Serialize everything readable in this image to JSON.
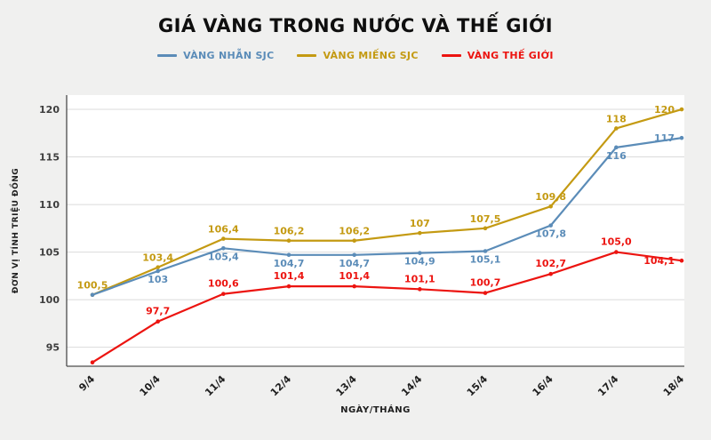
{
  "title": "GIÁ VÀNG TRONG NƯỚC VÀ THẾ GIỚI",
  "chart_data": {
    "type": "line",
    "x": [
      "9/4",
      "10/4",
      "11/4",
      "12/4",
      "13/4",
      "14/4",
      "15/4",
      "16/4",
      "17/4",
      "18/4"
    ],
    "xlabel": "NGÀY/THÁNG",
    "ylabel": "ĐƠN VỊ TÍNH TRIỆU ĐỒNG",
    "ylim": [
      93,
      121.5
    ],
    "yticks": [
      95,
      100,
      105,
      110,
      115,
      120
    ],
    "grid": true,
    "legend_position": "top",
    "series": [
      {
        "name": "VÀNG NHẪN SJC",
        "color": "#5b8cb8",
        "values": [
          100.5,
          103,
          105.4,
          104.7,
          104.7,
          104.9,
          105.1,
          107.8,
          116,
          117
        ],
        "labels": [
          "",
          "103",
          "105,4",
          "104,7",
          "104,7",
          "104,9",
          "105,1",
          "107,8",
          "116",
          "117"
        ]
      },
      {
        "name": "VÀNG MIẾNG SJC",
        "color": "#c49a12",
        "values": [
          100.5,
          103.4,
          106.4,
          106.2,
          106.2,
          107,
          107.5,
          109.8,
          118,
          120
        ],
        "labels": [
          "100,5",
          "103,4",
          "106,4",
          "106,2",
          "106,2",
          "107",
          "107,5",
          "109,8",
          "118",
          "120"
        ]
      },
      {
        "name": "VÀNG THẾ GIỚI",
        "color": "#ec1410",
        "values": [
          93.4,
          97.7,
          100.6,
          101.4,
          101.4,
          101.1,
          100.7,
          102.7,
          105.0,
          104.1
        ],
        "labels": [
          "",
          "97,7",
          "100,6",
          "101,4",
          "101,4",
          "101,1",
          "100,7",
          "102,7",
          "105,0",
          "104,1"
        ]
      }
    ]
  }
}
